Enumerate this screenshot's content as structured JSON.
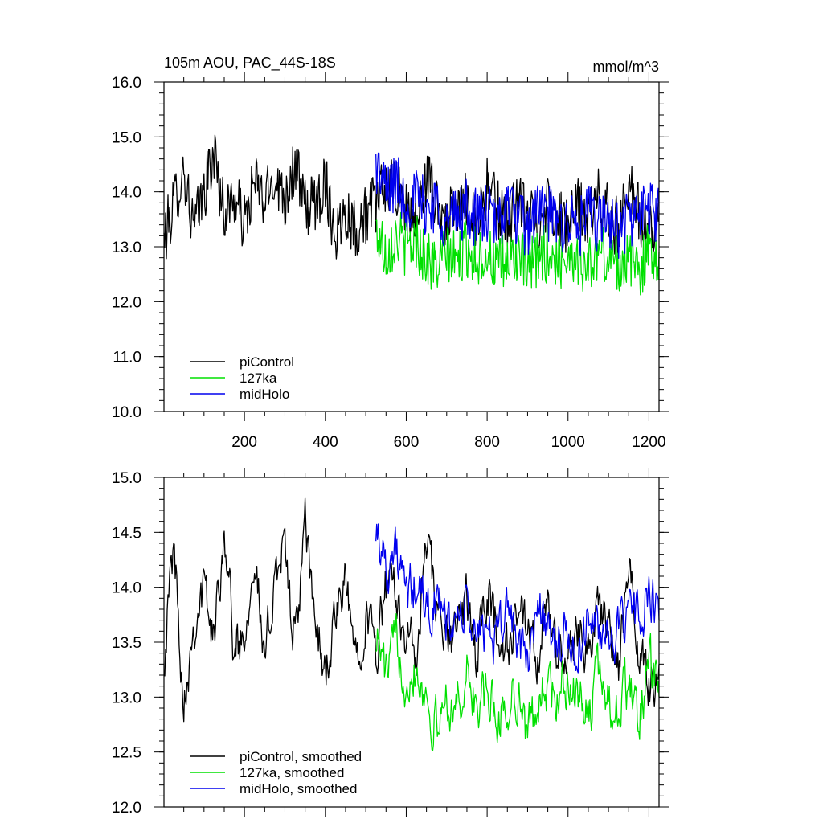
{
  "colors": {
    "piControl": "#000000",
    "127ka": "#00e000",
    "midHolo": "#0000ee"
  },
  "chart_data": [
    {
      "type": "line",
      "title": "105m AOU, PAC_44S-18S",
      "units": "mmol/m^3",
      "xlim": [
        1,
        1225
      ],
      "ylim": [
        10.0,
        16.0
      ],
      "xticks": [
        200,
        400,
        600,
        800,
        1000,
        1200
      ],
      "yticks": [
        10.0,
        11.0,
        12.0,
        13.0,
        14.0,
        15.0,
        16.0
      ],
      "ytick_labels": [
        "10.0",
        "11.0",
        "12.0",
        "13.0",
        "14.0",
        "15.0",
        "16.0"
      ],
      "xtick_labels": [
        "200",
        "400",
        "600",
        "800",
        "1000",
        "1200"
      ],
      "legend": {
        "position": "bottom-left",
        "entries": [
          "piControl",
          "127ka",
          "midHolo"
        ]
      },
      "series": [
        {
          "name": "piControl",
          "color_key": "piControl",
          "x": [
            1,
            25,
            50,
            75,
            100,
            125,
            150,
            175,
            200,
            225,
            250,
            275,
            300,
            325,
            350,
            375,
            400,
            425,
            450,
            475,
            500,
            525,
            550,
            575,
            600,
            625,
            650,
            675,
            700,
            725,
            750,
            775,
            800,
            825,
            850,
            875,
            900,
            925,
            950,
            975,
            1000,
            1025,
            1050,
            1075,
            1100,
            1125,
            1150,
            1175,
            1200,
            1225
          ],
          "y": [
            13.1,
            13.8,
            14.4,
            13.3,
            14.0,
            14.7,
            13.6,
            13.9,
            13.4,
            14.2,
            13.8,
            14.3,
            13.9,
            14.5,
            13.7,
            13.8,
            14.2,
            13.2,
            13.7,
            13.3,
            13.6,
            13.8,
            14.1,
            14.0,
            13.7,
            13.4,
            14.3,
            13.8,
            13.5,
            13.6,
            13.9,
            13.4,
            14.1,
            13.7,
            13.5,
            13.8,
            13.6,
            13.4,
            13.9,
            13.5,
            13.4,
            13.7,
            13.5,
            13.9,
            13.6,
            13.3,
            14.3,
            13.6,
            13.2,
            13.5
          ]
        },
        {
          "name": "127ka",
          "color_key": "127ka",
          "x": [
            525,
            550,
            575,
            600,
            625,
            650,
            675,
            700,
            725,
            750,
            775,
            800,
            825,
            850,
            875,
            900,
            925,
            950,
            975,
            1000,
            1025,
            1050,
            1075,
            1100,
            1125,
            1150,
            1175,
            1200,
            1225
          ],
          "y": [
            13.3,
            12.9,
            13.2,
            13.0,
            13.1,
            12.8,
            12.6,
            12.9,
            12.7,
            13.0,
            12.8,
            12.9,
            12.6,
            12.7,
            12.9,
            12.5,
            12.8,
            12.9,
            12.7,
            12.9,
            12.8,
            12.6,
            12.9,
            12.8,
            12.7,
            12.8,
            12.6,
            12.9,
            12.9
          ]
        },
        {
          "name": "midHolo",
          "color_key": "midHolo",
          "x": [
            525,
            550,
            575,
            600,
            625,
            650,
            675,
            700,
            725,
            750,
            775,
            800,
            825,
            850,
            875,
            900,
            925,
            950,
            975,
            1000,
            1025,
            1050,
            1075,
            1100,
            1125,
            1150,
            1175,
            1200,
            1225
          ],
          "y": [
            14.5,
            14.0,
            14.2,
            13.8,
            13.9,
            13.7,
            13.8,
            13.4,
            13.6,
            13.7,
            13.5,
            13.6,
            13.4,
            13.8,
            13.5,
            13.3,
            13.7,
            13.6,
            13.4,
            13.5,
            13.3,
            13.6,
            13.4,
            13.5,
            13.3,
            13.5,
            13.6,
            13.7,
            13.6
          ]
        }
      ]
    },
    {
      "type": "line",
      "xlim": [
        1,
        1225
      ],
      "ylim": [
        12.0,
        15.0
      ],
      "xticks": [
        200,
        400,
        600,
        800,
        1000,
        1200
      ],
      "yticks": [
        12.0,
        12.5,
        13.0,
        13.5,
        14.0,
        14.5,
        15.0
      ],
      "ytick_labels": [
        "12.0",
        "12.5",
        "13.0",
        "13.5",
        "14.0",
        "14.5",
        "15.0"
      ],
      "legend": {
        "position": "bottom-left",
        "entries": [
          "piControl, smoothed",
          "127ka, smoothed",
          "midHolo, smoothed"
        ]
      },
      "series": [
        {
          "name": "piControl, smoothed",
          "color_key": "piControl",
          "x": [
            1,
            25,
            50,
            75,
            100,
            125,
            150,
            175,
            200,
            225,
            250,
            275,
            300,
            325,
            350,
            375,
            400,
            425,
            450,
            475,
            500,
            525,
            550,
            575,
            600,
            625,
            650,
            675,
            700,
            725,
            750,
            775,
            800,
            825,
            850,
            875,
            900,
            925,
            950,
            975,
            1000,
            1025,
            1050,
            1075,
            1100,
            1125,
            1150,
            1175,
            1200,
            1225
          ],
          "y": [
            13.4,
            14.4,
            13.0,
            13.7,
            14.0,
            13.5,
            14.6,
            13.4,
            13.6,
            14.4,
            13.2,
            14.2,
            14.3,
            13.5,
            14.5,
            13.7,
            13.2,
            13.7,
            14.0,
            13.4,
            13.8,
            13.4,
            14.0,
            13.9,
            13.6,
            13.3,
            14.4,
            13.8,
            13.5,
            13.6,
            13.9,
            13.3,
            14.0,
            13.6,
            13.4,
            13.8,
            13.5,
            13.3,
            13.8,
            13.4,
            13.3,
            13.7,
            13.4,
            13.8,
            13.6,
            13.2,
            14.2,
            13.4,
            13.1,
            13.3
          ]
        },
        {
          "name": "127ka, smoothed",
          "color_key": "127ka",
          "x": [
            525,
            550,
            575,
            600,
            625,
            650,
            675,
            700,
            725,
            750,
            775,
            800,
            825,
            850,
            875,
            900,
            925,
            950,
            975,
            1000,
            1025,
            1050,
            1075,
            1100,
            1125,
            1150,
            1175,
            1200,
            1225
          ],
          "y": [
            13.6,
            13.2,
            13.5,
            13.2,
            13.3,
            13.0,
            12.7,
            13.0,
            12.9,
            13.2,
            12.9,
            13.0,
            12.8,
            12.9,
            13.1,
            12.6,
            13.0,
            13.1,
            12.9,
            13.2,
            13.0,
            12.8,
            13.2,
            13.0,
            12.9,
            13.1,
            12.8,
            13.3,
            13.0
          ]
        },
        {
          "name": "midHolo, smoothed",
          "color_key": "midHolo",
          "x": [
            525,
            550,
            575,
            600,
            625,
            650,
            675,
            700,
            725,
            750,
            775,
            800,
            825,
            850,
            875,
            900,
            925,
            950,
            975,
            1000,
            1025,
            1050,
            1075,
            1100,
            1125,
            1150,
            1175,
            1200,
            1225
          ],
          "y": [
            14.6,
            14.2,
            14.3,
            13.9,
            14.0,
            13.8,
            13.9,
            13.6,
            13.7,
            13.8,
            13.5,
            13.7,
            13.4,
            13.9,
            13.5,
            13.3,
            13.9,
            13.6,
            13.4,
            13.6,
            13.3,
            13.8,
            13.5,
            13.7,
            13.5,
            13.7,
            13.8,
            13.9,
            13.7
          ]
        }
      ]
    }
  ]
}
